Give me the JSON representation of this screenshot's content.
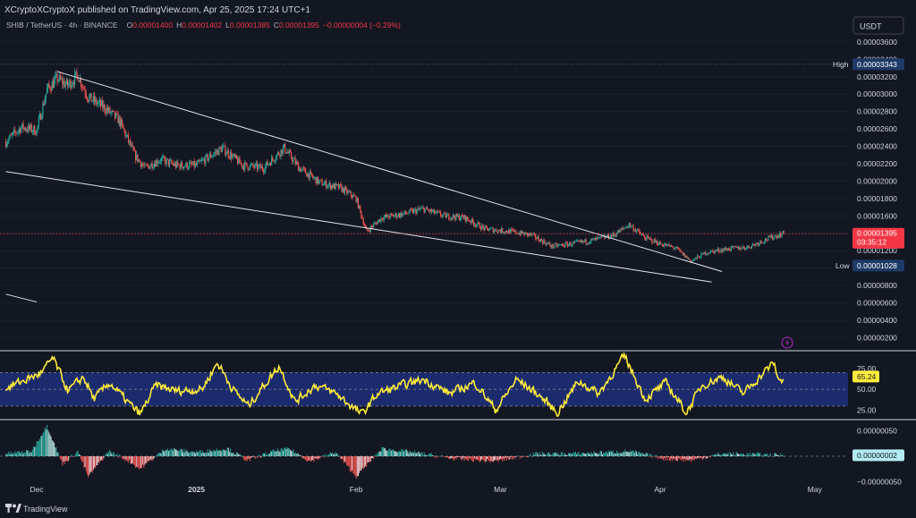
{
  "header": {
    "publisher": "XCryptoXCryptoX published on TradingView.com, Apr 25, 2025 17:24 UTC+1",
    "symbol": "SHIB / TetherUS · 4h · BINANCE",
    "o_label": "O",
    "o_value": "0.00001400",
    "h_label": "H",
    "h_value": "0.00001402",
    "l_label": "L",
    "l_value": "0.00001385",
    "c_label": "C",
    "c_value": "0.00001395",
    "change": "−0.00000004 (−0.29%)"
  },
  "currency_button": "USDT",
  "footer": {
    "brand": "TradingView"
  },
  "colors": {
    "background": "#131722",
    "up": "#26a69a",
    "down": "#ef5350",
    "rsi_line": "#ffeb3b",
    "rsi_band": "#1e2f7a",
    "price_tag": "#f23645",
    "high_low_tag": "#1e3a66",
    "osc_value_tag": "#b2ebf2"
  },
  "chart_data": [
    {
      "type": "candlestick",
      "pair": "SHIB / TetherUS",
      "interval": "4h",
      "exchange": "BINANCE",
      "x_ticks": [
        "Dec",
        "2025",
        "Feb",
        "Mar",
        "Apr",
        "May"
      ],
      "y_ticks": [
        "0.00003600",
        "0.00003400",
        "0.00003200",
        "0.00003000",
        "0.00002800",
        "0.00002600",
        "0.00002400",
        "0.00002200",
        "0.00002000",
        "0.00001800",
        "0.00001600",
        "0.00001400",
        "0.00001200",
        "0.00001000",
        "0.00000800",
        "0.00000600",
        "0.00000400",
        "0.00000200"
      ],
      "ylim": [
        5e-07,
        3.65e-05
      ],
      "close_path": [
        {
          "date": "2024-11-25",
          "price": 2.45e-05
        },
        {
          "date": "2024-11-28",
          "price": 2.62e-05
        },
        {
          "date": "2024-12-01",
          "price": 2.58e-05
        },
        {
          "date": "2024-12-03",
          "price": 3.05e-05
        },
        {
          "date": "2024-12-05",
          "price": 3.18e-05
        },
        {
          "date": "2024-12-07",
          "price": 3.1e-05
        },
        {
          "date": "2024-12-09",
          "price": 3.22e-05
        },
        {
          "date": "2024-12-11",
          "price": 2.96e-05
        },
        {
          "date": "2024-12-14",
          "price": 2.85e-05
        },
        {
          "date": "2024-12-17",
          "price": 2.7e-05
        },
        {
          "date": "2024-12-20",
          "price": 2.3e-05
        },
        {
          "date": "2024-12-22",
          "price": 2.15e-05
        },
        {
          "date": "2024-12-25",
          "price": 2.25e-05
        },
        {
          "date": "2024-12-28",
          "price": 2.18e-05
        },
        {
          "date": "2025-01-01",
          "price": 2.18e-05
        },
        {
          "date": "2025-01-06",
          "price": 2.38e-05
        },
        {
          "date": "2025-01-10",
          "price": 2.18e-05
        },
        {
          "date": "2025-01-14",
          "price": 2.15e-05
        },
        {
          "date": "2025-01-18",
          "price": 2.38e-05
        },
        {
          "date": "2025-01-21",
          "price": 2.15e-05
        },
        {
          "date": "2025-01-25",
          "price": 1.98e-05
        },
        {
          "date": "2025-01-29",
          "price": 1.92e-05
        },
        {
          "date": "2025-02-01",
          "price": 1.8e-05
        },
        {
          "date": "2025-02-03",
          "price": 1.42e-05
        },
        {
          "date": "2025-02-06",
          "price": 1.58e-05
        },
        {
          "date": "2025-02-10",
          "price": 1.62e-05
        },
        {
          "date": "2025-02-14",
          "price": 1.68e-05
        },
        {
          "date": "2025-02-18",
          "price": 1.6e-05
        },
        {
          "date": "2025-02-22",
          "price": 1.58e-05
        },
        {
          "date": "2025-02-26",
          "price": 1.45e-05
        },
        {
          "date": "2025-03-03",
          "price": 1.42e-05
        },
        {
          "date": "2025-03-07",
          "price": 1.38e-05
        },
        {
          "date": "2025-03-11",
          "price": 1.25e-05
        },
        {
          "date": "2025-03-15",
          "price": 1.28e-05
        },
        {
          "date": "2025-03-19",
          "price": 1.32e-05
        },
        {
          "date": "2025-03-23",
          "price": 1.38e-05
        },
        {
          "date": "2025-03-26",
          "price": 1.5e-05
        },
        {
          "date": "2025-03-29",
          "price": 1.35e-05
        },
        {
          "date": "2025-04-01",
          "price": 1.28e-05
        },
        {
          "date": "2025-04-04",
          "price": 1.23e-05
        },
        {
          "date": "2025-04-07",
          "price": 1.08e-05
        },
        {
          "date": "2025-04-10",
          "price": 1.18e-05
        },
        {
          "date": "2025-04-14",
          "price": 1.22e-05
        },
        {
          "date": "2025-04-18",
          "price": 1.24e-05
        },
        {
          "date": "2025-04-22",
          "price": 1.34e-05
        },
        {
          "date": "2025-04-25",
          "price": 1.4e-05
        }
      ],
      "trendlines": [
        {
          "from": {
            "date": "2024-12-05",
            "price": 3.26e-05
          },
          "to": {
            "date": "2025-04-13",
            "price": 9.6e-06
          }
        },
        {
          "from": {
            "date": "2024-11-25",
            "price": 2.11e-05
          },
          "to": {
            "date": "2025-04-11",
            "price": 8.4e-06
          }
        },
        {
          "from": {
            "date": "2024-11-25",
            "price": 7e-06
          },
          "to": {
            "date": "2024-12-01",
            "price": 6.1e-06
          }
        }
      ],
      "high": {
        "label": "High",
        "value": "0.00003343",
        "price": 3.343e-05
      },
      "low": {
        "label": "Low",
        "value": "0.00001028",
        "price": 1.028e-05
      },
      "last_price": {
        "value": "0.00001395",
        "countdown": "03:35:12",
        "price": 1.395e-05
      }
    },
    {
      "type": "line",
      "indicator": "RSI",
      "y_ticks": [
        "75.00",
        "50.00",
        "25.00"
      ],
      "band": [
        30,
        70
      ],
      "ylim": [
        15,
        95
      ],
      "current": "65.24",
      "path": [
        {
          "date": "2024-11-25",
          "value": 52
        },
        {
          "date": "2024-11-29",
          "value": 62
        },
        {
          "date": "2024-12-02",
          "value": 70
        },
        {
          "date": "2024-12-04",
          "value": 88
        },
        {
          "date": "2024-12-07",
          "value": 48
        },
        {
          "date": "2024-12-10",
          "value": 65
        },
        {
          "date": "2024-12-12",
          "value": 38
        },
        {
          "date": "2024-12-15",
          "value": 58
        },
        {
          "date": "2024-12-19",
          "value": 32
        },
        {
          "date": "2024-12-21",
          "value": 20
        },
        {
          "date": "2024-12-24",
          "value": 55
        },
        {
          "date": "2024-12-28",
          "value": 48
        },
        {
          "date": "2025-01-02",
          "value": 50
        },
        {
          "date": "2025-01-05",
          "value": 82
        },
        {
          "date": "2025-01-08",
          "value": 50
        },
        {
          "date": "2025-01-11",
          "value": 30
        },
        {
          "date": "2025-01-14",
          "value": 55
        },
        {
          "date": "2025-01-17",
          "value": 78
        },
        {
          "date": "2025-01-20",
          "value": 35
        },
        {
          "date": "2025-01-24",
          "value": 55
        },
        {
          "date": "2025-01-28",
          "value": 45
        },
        {
          "date": "2025-02-02",
          "value": 20
        },
        {
          "date": "2025-02-05",
          "value": 45
        },
        {
          "date": "2025-02-10",
          "value": 55
        },
        {
          "date": "2025-02-14",
          "value": 62
        },
        {
          "date": "2025-02-19",
          "value": 45
        },
        {
          "date": "2025-02-24",
          "value": 58
        },
        {
          "date": "2025-02-28",
          "value": 25
        },
        {
          "date": "2025-03-04",
          "value": 62
        },
        {
          "date": "2025-03-08",
          "value": 45
        },
        {
          "date": "2025-03-12",
          "value": 22
        },
        {
          "date": "2025-03-16",
          "value": 60
        },
        {
          "date": "2025-03-20",
          "value": 45
        },
        {
          "date": "2025-03-25",
          "value": 90
        },
        {
          "date": "2025-03-29",
          "value": 38
        },
        {
          "date": "2025-04-02",
          "value": 58
        },
        {
          "date": "2025-04-06",
          "value": 22
        },
        {
          "date": "2025-04-09",
          "value": 55
        },
        {
          "date": "2025-04-13",
          "value": 65
        },
        {
          "date": "2025-04-17",
          "value": 45
        },
        {
          "date": "2025-04-21",
          "value": 70
        },
        {
          "date": "2025-04-23",
          "value": 82
        },
        {
          "date": "2025-04-24",
          "value": 58
        },
        {
          "date": "2025-04-25",
          "value": 65
        }
      ]
    },
    {
      "type": "bar",
      "indicator": "Oscillator histogram",
      "y_ticks": [
        "0.00000050",
        "0.00000000",
        "−0.00000050"
      ],
      "ylim": [
        -7e-07,
        7e-07
      ],
      "current": "0.00000002",
      "path": [
        {
          "date": "2024-11-25",
          "value": 5e-08
        },
        {
          "date": "2024-11-30",
          "value": 1e-07
        },
        {
          "date": "2024-12-03",
          "value": 6e-07
        },
        {
          "date": "2024-12-06",
          "value": -1.5e-07
        },
        {
          "date": "2024-12-09",
          "value": 1e-07
        },
        {
          "date": "2024-12-11",
          "value": -4e-07
        },
        {
          "date": "2024-12-15",
          "value": 1e-07
        },
        {
          "date": "2024-12-19",
          "value": -1e-07
        },
        {
          "date": "2024-12-21",
          "value": -2.5e-07
        },
        {
          "date": "2024-12-26",
          "value": 1.5e-07
        },
        {
          "date": "2025-01-01",
          "value": 8e-08
        },
        {
          "date": "2025-01-07",
          "value": 1.5e-07
        },
        {
          "date": "2025-01-11",
          "value": -8e-08
        },
        {
          "date": "2025-01-16",
          "value": 1e-07
        },
        {
          "date": "2025-01-19",
          "value": 1.5e-07
        },
        {
          "date": "2025-01-23",
          "value": -1e-07
        },
        {
          "date": "2025-01-28",
          "value": 8e-08
        },
        {
          "date": "2025-02-01",
          "value": -4e-07
        },
        {
          "date": "2025-02-06",
          "value": 1.5e-07
        },
        {
          "date": "2025-02-12",
          "value": 8e-08
        },
        {
          "date": "2025-02-20",
          "value": -5e-08
        },
        {
          "date": "2025-02-28",
          "value": -1e-07
        },
        {
          "date": "2025-03-08",
          "value": 5e-08
        },
        {
          "date": "2025-03-15",
          "value": 5e-08
        },
        {
          "date": "2025-03-22",
          "value": 8e-08
        },
        {
          "date": "2025-03-26",
          "value": 1e-07
        },
        {
          "date": "2025-04-02",
          "value": -5e-08
        },
        {
          "date": "2025-04-07",
          "value": -8e-08
        },
        {
          "date": "2025-04-13",
          "value": 5e-08
        },
        {
          "date": "2025-04-20",
          "value": 4e-08
        },
        {
          "date": "2025-04-25",
          "value": 2e-08
        }
      ]
    }
  ]
}
